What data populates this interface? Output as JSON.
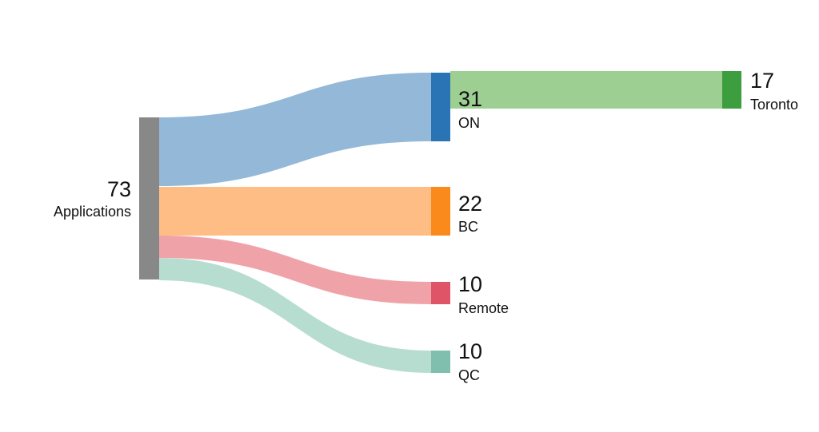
{
  "diagram": {
    "type": "sankey",
    "nodes": [
      {
        "id": "applications",
        "label": "Applications",
        "value": "73",
        "color": "#888888"
      },
      {
        "id": "on",
        "label": "ON",
        "value": "31",
        "color": "#2a74b5"
      },
      {
        "id": "bc",
        "label": "BC",
        "value": "22",
        "color": "#f98a1b"
      },
      {
        "id": "remote",
        "label": "Remote",
        "value": "10",
        "color": "#e05468"
      },
      {
        "id": "qc",
        "label": "QC",
        "value": "10",
        "color": "#80bfae"
      },
      {
        "id": "toronto",
        "label": "Toronto",
        "value": "17",
        "color": "#3c9e3e"
      }
    ],
    "links": [
      {
        "source": "applications",
        "target": "on",
        "value": 31,
        "color": "#93b8d8"
      },
      {
        "source": "applications",
        "target": "bc",
        "value": 22,
        "color": "#fdbd84"
      },
      {
        "source": "applications",
        "target": "remote",
        "value": 10,
        "color": "#f0a2a9"
      },
      {
        "source": "applications",
        "target": "qc",
        "value": 10,
        "color": "#b7ddd0"
      },
      {
        "source": "on",
        "target": "toronto",
        "value": 17,
        "color": "#9dcf93"
      }
    ]
  }
}
